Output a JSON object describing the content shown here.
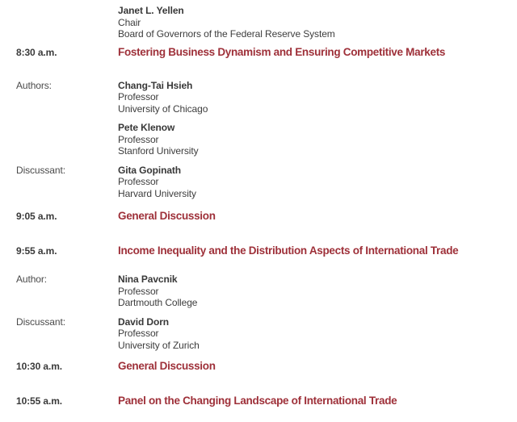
{
  "page": {
    "background_color": "#ffffff",
    "accent_color": "#9E3039",
    "body_text_color": "#3d3d3d"
  },
  "agenda": {
    "items": [
      {
        "type": "speaker",
        "label": "",
        "person": {
          "name": "Janet L. Yellen",
          "title": "Chair",
          "affiliation": "Board of Governors of the Federal Reserve System"
        }
      },
      {
        "type": "session",
        "time": "8:30 a.m.",
        "title": "Fostering Business Dynamism and Ensuring Competitive Markets"
      },
      {
        "type": "person",
        "label": "Authors:",
        "person": {
          "name": "Chang-Tai Hsieh",
          "title": "Professor",
          "affiliation": "University of Chicago"
        }
      },
      {
        "type": "person",
        "label": "",
        "person": {
          "name": "Pete Klenow",
          "title": "Professor",
          "affiliation": "Stanford University"
        }
      },
      {
        "type": "person",
        "label": "Discussant:",
        "person": {
          "name": "Gita Gopinath",
          "title": "Professor",
          "affiliation": "Harvard University"
        }
      },
      {
        "type": "session",
        "time": "9:05 a.m.",
        "title": "General Discussion"
      },
      {
        "type": "session",
        "time": "9:55 a.m.",
        "title": "Income Inequality and the Distribution Aspects of International Trade"
      },
      {
        "type": "person",
        "label": "Author:",
        "person": {
          "name": "Nina Pavcnik",
          "title": "Professor",
          "affiliation": "Dartmouth College"
        }
      },
      {
        "type": "person",
        "label": "Discussant:",
        "person": {
          "name": "David Dorn",
          "title": "Professor",
          "affiliation": "University of Zurich"
        }
      },
      {
        "type": "session",
        "time": "10:30 a.m.",
        "title": "General Discussion"
      },
      {
        "type": "session",
        "time": "10:55 a.m.",
        "title": "Panel on the Changing Landscape of International Trade"
      }
    ]
  }
}
